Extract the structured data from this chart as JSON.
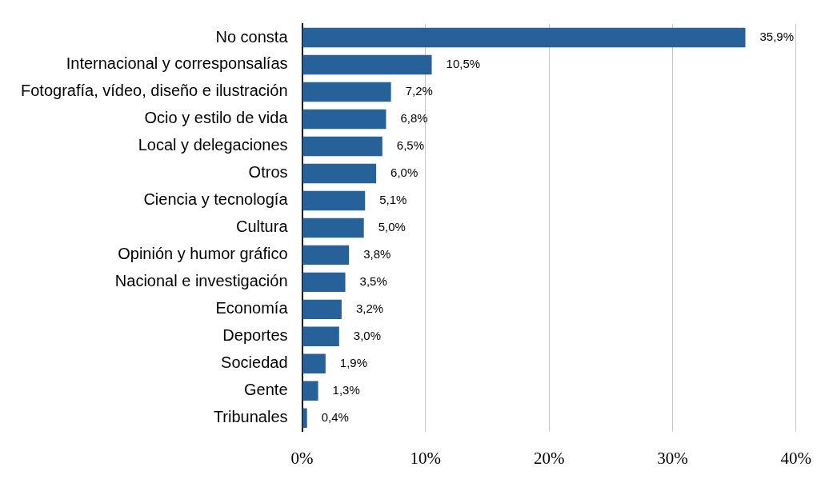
{
  "chart_data": {
    "type": "bar",
    "orientation": "horizontal",
    "categories": [
      "No consta",
      "Internacional y corresponsalías",
      "Fotografía, vídeo, diseño e ilustración",
      "Ocio y estilo de vida",
      "Local y delegaciones",
      "Otros",
      "Ciencia y tecnología",
      "Cultura",
      "Opinión y humor gráfico",
      "Nacional e investigación",
      "Economía",
      "Deportes",
      "Sociedad",
      "Gente",
      "Tribunales"
    ],
    "values": [
      35.9,
      10.5,
      7.2,
      6.8,
      6.5,
      6.0,
      5.1,
      5.0,
      3.8,
      3.5,
      3.2,
      3.0,
      1.9,
      1.3,
      0.4
    ],
    "value_labels": [
      "35,9%",
      "10,5%",
      "7,2%",
      "6,8%",
      "6,5%",
      "6,0%",
      "5,1%",
      "5,0%",
      "3,8%",
      "3,5%",
      "3,2%",
      "3,0%",
      "1,9%",
      "1,3%",
      "0,4%"
    ],
    "color": "#266199",
    "xlim": [
      0,
      40
    ],
    "xticks": [
      {
        "value": 0,
        "label": "0%"
      },
      {
        "value": 10,
        "label": "10%"
      },
      {
        "value": 20,
        "label": "20%"
      },
      {
        "value": 30,
        "label": "30%"
      },
      {
        "value": 40,
        "label": "40%"
      }
    ],
    "grid": "x",
    "legend": false
  }
}
